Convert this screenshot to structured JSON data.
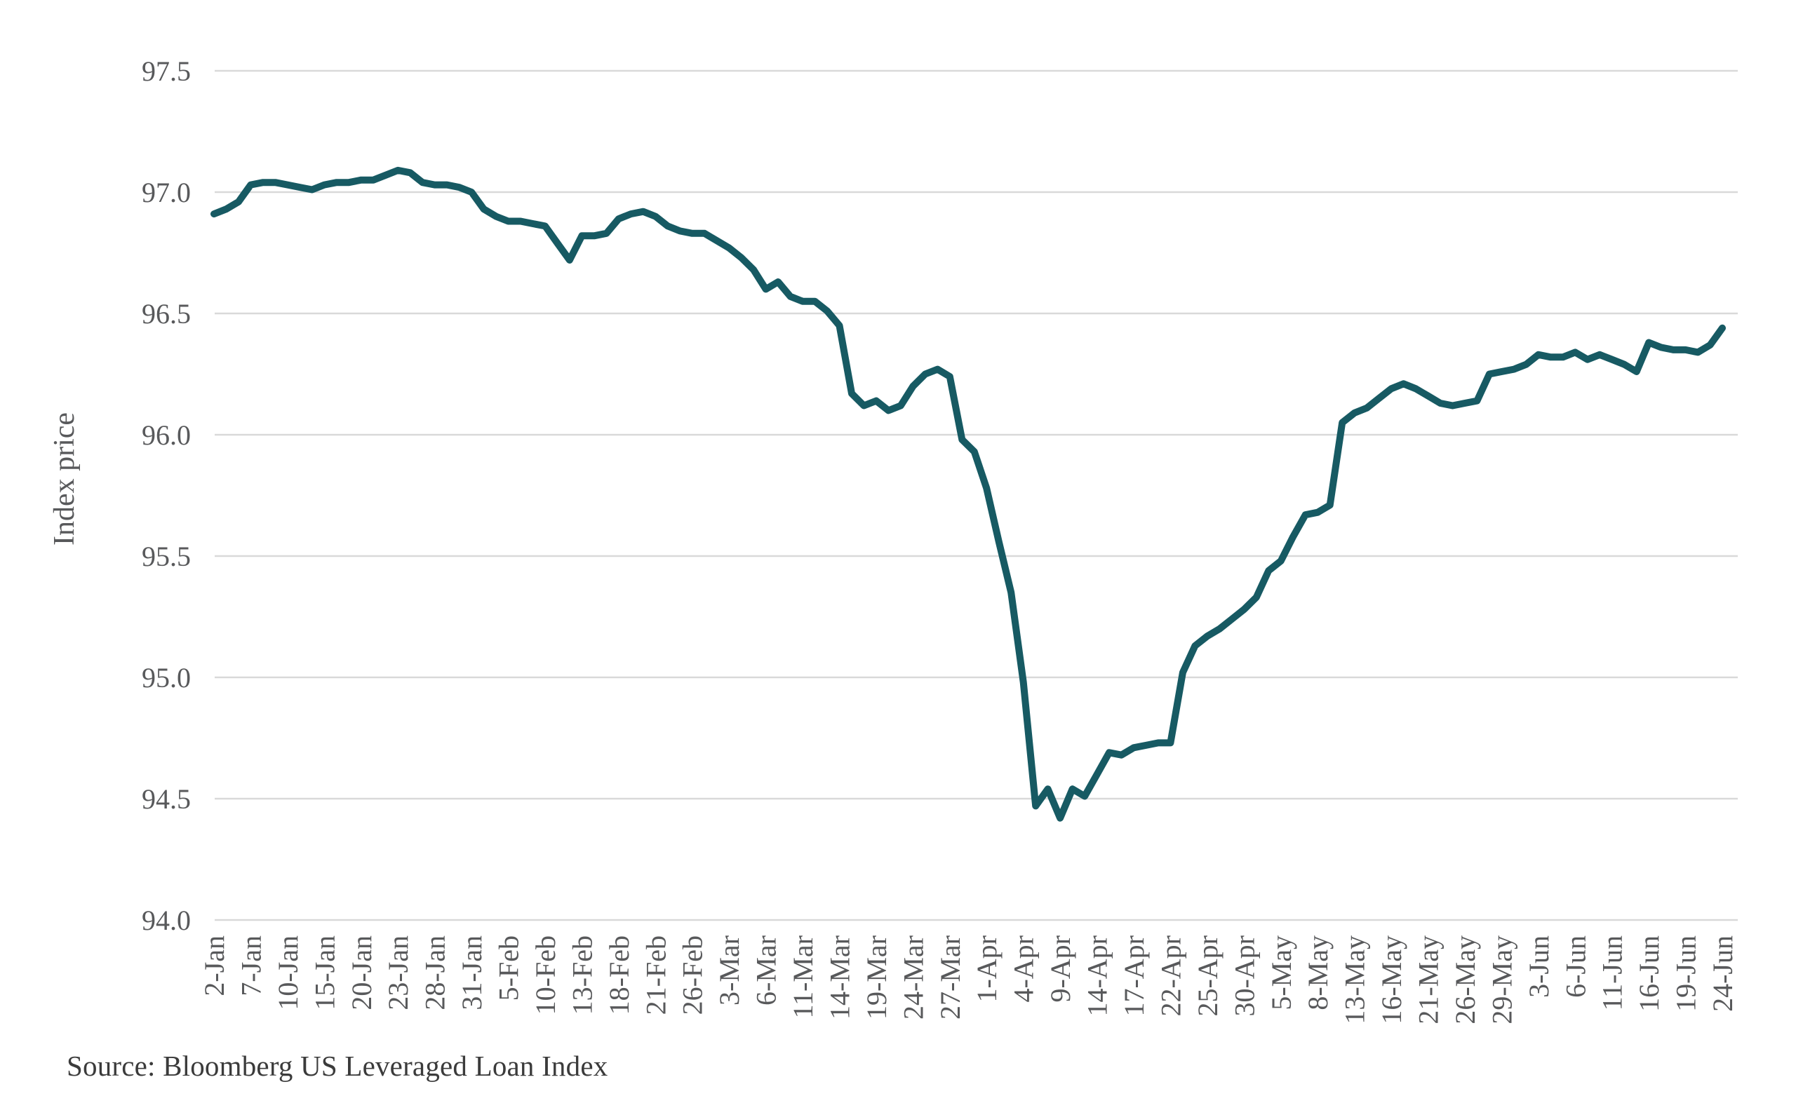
{
  "source": "Source: Bloomberg US Leveraged Loan Index",
  "colors": {
    "line": "#175a63",
    "gridline": "#d9d9d9",
    "tick_text": "#58595b",
    "source_text": "#3b3b3b",
    "background": "#ffffff"
  },
  "chart_data": {
    "type": "line",
    "title": "",
    "xlabel": "",
    "ylabel": "Index price",
    "ylim": [
      94.0,
      97.5
    ],
    "y_ticks": [
      "97.5",
      "97.0",
      "96.5",
      "96.0",
      "95.5",
      "95.0",
      "94.5",
      "94.0"
    ],
    "y_tick_values": [
      97.5,
      97.0,
      96.5,
      96.0,
      95.5,
      95.0,
      94.5,
      94.0
    ],
    "grid": "horizontal",
    "legend": "none",
    "x_tick_labels": [
      "2-Jan",
      "7-Jan",
      "10-Jan",
      "15-Jan",
      "20-Jan",
      "23-Jan",
      "28-Jan",
      "31-Jan",
      "5-Feb",
      "10-Feb",
      "13-Feb",
      "18-Feb",
      "21-Feb",
      "26-Feb",
      "3-Mar",
      "6-Mar",
      "11-Mar",
      "14-Mar",
      "19-Mar",
      "24-Mar",
      "27-Mar",
      "1-Apr",
      "4-Apr",
      "9-Apr",
      "14-Apr",
      "17-Apr",
      "22-Apr",
      "25-Apr",
      "30-Apr",
      "5-May",
      "8-May",
      "13-May",
      "16-May",
      "21-May",
      "26-May",
      "29-May",
      "3-Jun",
      "6-Jun",
      "11-Jun",
      "16-Jun",
      "19-Jun",
      "24-Jun"
    ],
    "x_tick_every": 3,
    "x": [
      "2-Jan",
      "3-Jan",
      "6-Jan",
      "7-Jan",
      "8-Jan",
      "9-Jan",
      "10-Jan",
      "13-Jan",
      "14-Jan",
      "15-Jan",
      "16-Jan",
      "17-Jan",
      "20-Jan",
      "21-Jan",
      "22-Jan",
      "23-Jan",
      "24-Jan",
      "27-Jan",
      "28-Jan",
      "29-Jan",
      "30-Jan",
      "31-Jan",
      "3-Feb",
      "4-Feb",
      "5-Feb",
      "6-Feb",
      "7-Feb",
      "10-Feb",
      "11-Feb",
      "12-Feb",
      "13-Feb",
      "14-Feb",
      "17-Feb",
      "18-Feb",
      "19-Feb",
      "20-Feb",
      "21-Feb",
      "24-Feb",
      "25-Feb",
      "26-Feb",
      "27-Feb",
      "28-Feb",
      "3-Mar",
      "4-Mar",
      "5-Mar",
      "6-Mar",
      "7-Mar",
      "10-Mar",
      "11-Mar",
      "12-Mar",
      "13-Mar",
      "14-Mar",
      "17-Mar",
      "18-Mar",
      "19-Mar",
      "20-Mar",
      "21-Mar",
      "24-Mar",
      "25-Mar",
      "26-Mar",
      "27-Mar",
      "28-Mar",
      "31-Mar",
      "1-Apr",
      "2-Apr",
      "3-Apr",
      "4-Apr",
      "7-Apr",
      "8-Apr",
      "9-Apr",
      "10-Apr",
      "11-Apr",
      "14-Apr",
      "15-Apr",
      "16-Apr",
      "17-Apr",
      "18-Apr",
      "21-Apr",
      "22-Apr",
      "23-Apr",
      "24-Apr",
      "25-Apr",
      "28-Apr",
      "29-Apr",
      "30-Apr",
      "1-May",
      "2-May",
      "5-May",
      "6-May",
      "7-May",
      "8-May",
      "9-May",
      "12-May",
      "13-May",
      "14-May",
      "15-May",
      "16-May",
      "19-May",
      "20-May",
      "21-May",
      "22-May",
      "23-May",
      "26-May",
      "27-May",
      "28-May",
      "29-May",
      "30-May",
      "2-Jun",
      "3-Jun",
      "4-Jun",
      "5-Jun",
      "6-Jun",
      "9-Jun",
      "10-Jun",
      "11-Jun",
      "12-Jun",
      "13-Jun",
      "16-Jun",
      "17-Jun",
      "18-Jun",
      "19-Jun",
      "20-Jun",
      "23-Jun",
      "24-Jun"
    ],
    "values": [
      96.91,
      96.93,
      96.96,
      97.03,
      97.04,
      97.04,
      97.03,
      97.02,
      97.01,
      97.03,
      97.04,
      97.04,
      97.05,
      97.05,
      97.07,
      97.09,
      97.08,
      97.04,
      97.03,
      97.03,
      97.02,
      97.0,
      96.93,
      96.9,
      96.88,
      96.88,
      96.87,
      96.86,
      96.79,
      96.72,
      96.82,
      96.82,
      96.83,
      96.89,
      96.91,
      96.92,
      96.9,
      96.86,
      96.84,
      96.83,
      96.83,
      96.8,
      96.77,
      96.73,
      96.68,
      96.6,
      96.63,
      96.57,
      96.55,
      96.55,
      96.51,
      96.45,
      96.17,
      96.12,
      96.14,
      96.1,
      96.12,
      96.2,
      96.25,
      96.27,
      96.24,
      95.98,
      95.93,
      95.78,
      95.56,
      95.35,
      94.98,
      94.47,
      94.54,
      94.42,
      94.54,
      94.51,
      94.6,
      94.69,
      94.68,
      94.71,
      94.72,
      94.73,
      94.73,
      95.02,
      95.13,
      95.17,
      95.2,
      95.24,
      95.28,
      95.33,
      95.44,
      95.48,
      95.58,
      95.67,
      95.68,
      95.71,
      96.05,
      96.09,
      96.11,
      96.15,
      96.19,
      96.21,
      96.19,
      96.16,
      96.13,
      96.12,
      96.13,
      96.14,
      96.25,
      96.26,
      96.27,
      96.29,
      96.33,
      96.32,
      96.32,
      96.34,
      96.31,
      96.33,
      96.31,
      96.29,
      96.26,
      96.38,
      96.36,
      96.35,
      96.35,
      96.34,
      96.37,
      96.44
    ],
    "layout": {
      "plot_left": 306,
      "plot_right": 2477,
      "plot_top": 101,
      "plot_bottom": 1312,
      "x_first_point": 305,
      "x_step": 17.48,
      "line_width": 10,
      "grid_width": 2.5,
      "tick_font_size": 40,
      "ylabel_font_size": 42,
      "ylabel_x": 105,
      "ylabel_y": 683,
      "y_tick_right_x": 272,
      "x_tick_top_y": 1334
    }
  }
}
